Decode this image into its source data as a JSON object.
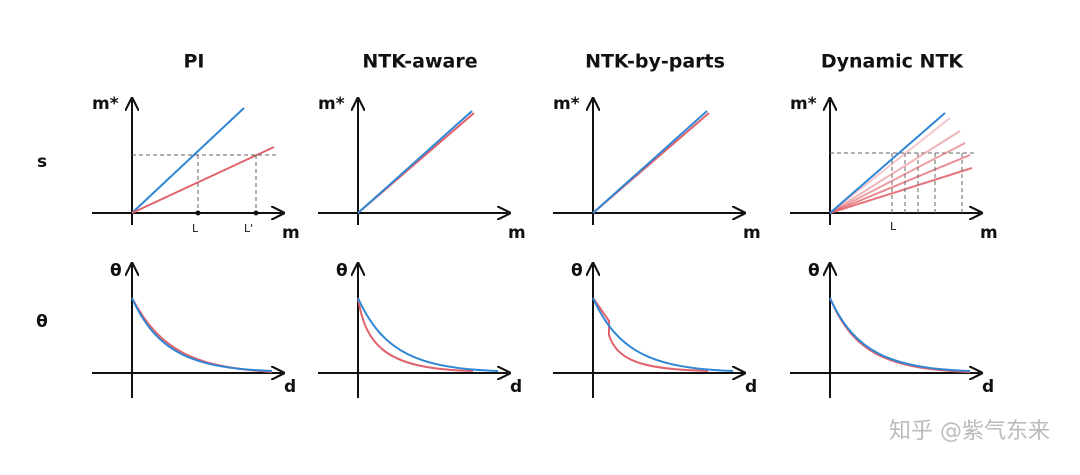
{
  "columns": [
    {
      "title": "PI",
      "y_axis_label": "m*",
      "x_axis_label": "m",
      "x_marks": [
        "L",
        "L'"
      ],
      "bottom_y_label": "θ",
      "bottom_x_label": "d"
    },
    {
      "title": "NTK-aware",
      "y_axis_label": "m*",
      "x_axis_label": "m",
      "bottom_y_label": "θ",
      "bottom_x_label": "d"
    },
    {
      "title": "NTK-by-parts",
      "y_axis_label": "m*",
      "x_axis_label": "m",
      "bottom_y_label": "θ",
      "bottom_x_label": "d"
    },
    {
      "title": "Dynamic NTK",
      "y_axis_label": "m*",
      "x_axis_label": "m",
      "x_marks": [
        "L"
      ],
      "bottom_y_label": "θ",
      "bottom_x_label": "d"
    }
  ],
  "row_labels": [
    "s",
    "θ"
  ],
  "watermark": "知乎 @紫气东来"
}
